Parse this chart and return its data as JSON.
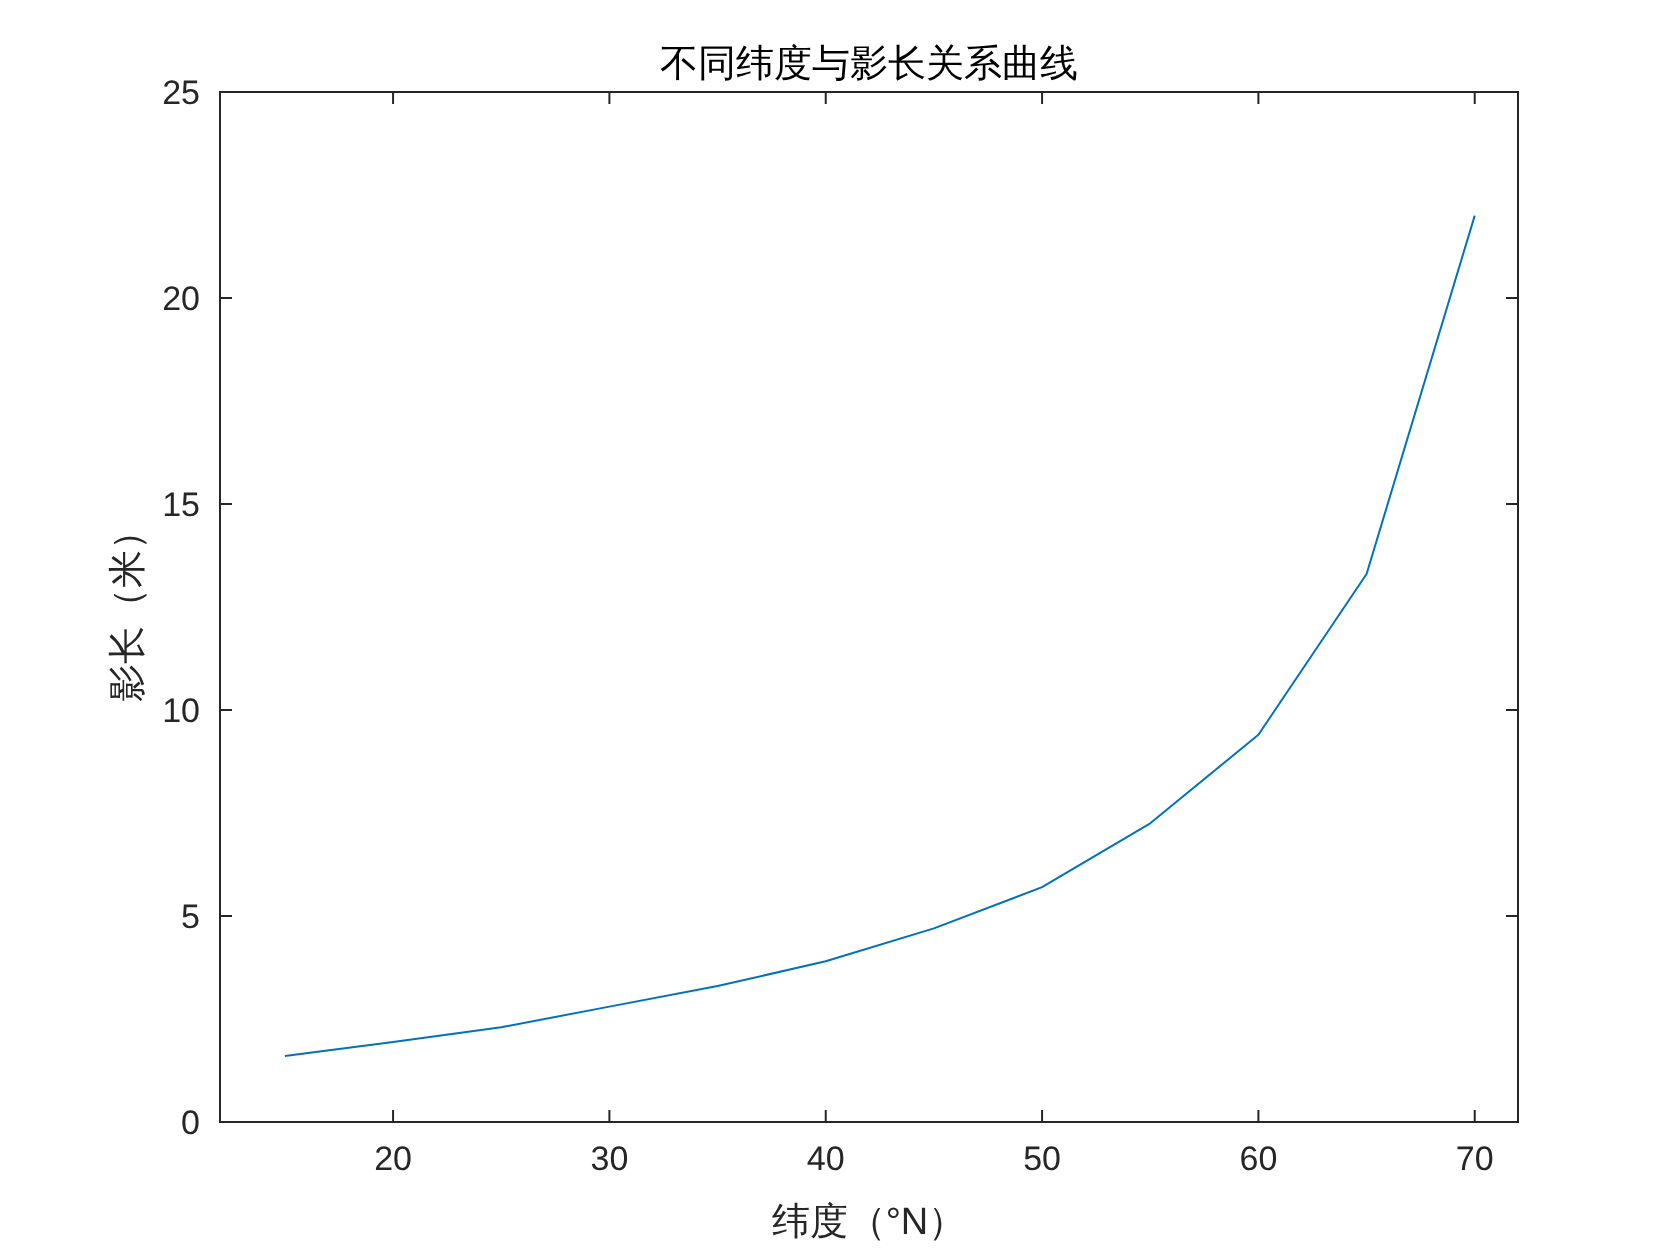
{
  "chart_data": {
    "type": "line",
    "title": "不同纬度与影长关系曲线",
    "xlabel": "纬度（°N）",
    "ylabel": "影长（米）",
    "x": [
      15,
      20,
      25,
      30,
      35,
      40,
      45,
      50,
      55,
      60,
      65,
      70
    ],
    "values": [
      1.6,
      1.94,
      2.3,
      2.8,
      3.3,
      3.9,
      4.7,
      5.7,
      7.25,
      9.4,
      13.3,
      22.0
    ],
    "color": "#0072bd",
    "xlim": [
      12,
      72
    ],
    "ylim": [
      0,
      25
    ],
    "xticks": [
      20,
      30,
      40,
      50,
      60,
      70
    ],
    "yticks": [
      0,
      5,
      10,
      15,
      20,
      25
    ]
  }
}
